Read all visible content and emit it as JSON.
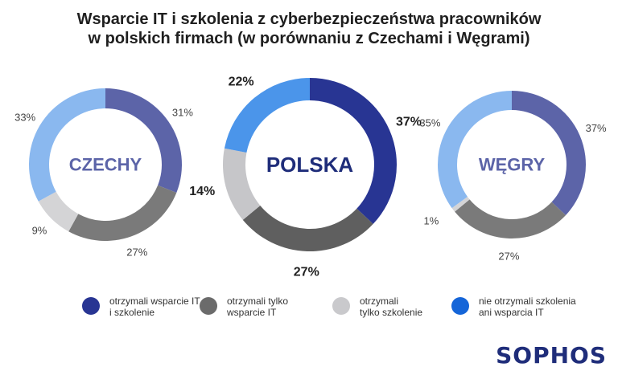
{
  "title_line1": "Wsparcie IT i szkolenia z cyberbezpieczeństwa pracowników",
  "title_line2": "w polskich firmach (w porównaniu z Czechami i Węgrami)",
  "brand": "SOPHOS",
  "legend": [
    {
      "label": "otrzymali wsparcie IT\ni szkolenie",
      "color": "#283593"
    },
    {
      "label": "otrzymali tylko\nwsparcie IT",
      "color": "#6b6b6b"
    },
    {
      "label": "otrzymali\ntylko szkolenie",
      "color": "#c9c9cc"
    },
    {
      "label": "nie otrzymali szkolenia\nani wsparcia IT",
      "color": "#1565d8"
    }
  ],
  "chart_data": [
    {
      "type": "donut",
      "center_label": "CZECHY",
      "categories": [
        "otrzymali wsparcie IT i szkolenie",
        "otrzymali tylko wsparcie IT",
        "otrzymali tylko szkolenie",
        "nie otrzymali szkolenia ani wsparcia IT"
      ],
      "values": [
        31,
        27,
        9,
        33
      ],
      "labels": [
        "31%",
        "27%",
        "9%",
        "33%"
      ],
      "colors": [
        "#5c64a8",
        "#7a7a7a",
        "#d4d4d6",
        "#8ab8ef"
      ],
      "label_color": "#444444",
      "center_color": "#5c64a8"
    },
    {
      "type": "donut",
      "center_label": "POLSKA",
      "categories": [
        "otrzymali wsparcie IT i szkolenie",
        "otrzymali tylko wsparcie IT",
        "otrzymali tylko szkolenie",
        "nie otrzymali szkolenia ani wsparcia IT"
      ],
      "values": [
        37,
        27,
        14,
        22
      ],
      "labels": [
        "37%",
        "27%",
        "14%",
        "22%"
      ],
      "colors": [
        "#283593",
        "#5f5f5f",
        "#c6c6c9",
        "#4b95ea"
      ],
      "label_color": "#222222",
      "center_color": "#1f2d7a"
    },
    {
      "type": "donut",
      "center_label": "WĘGRY",
      "categories": [
        "otrzymali wsparcie IT i szkolenie",
        "otrzymali tylko wsparcie IT",
        "otrzymali tylko szkolenie",
        "nie otrzymali szkolenia ani wsparcia IT"
      ],
      "values": [
        37,
        27,
        1,
        35
      ],
      "labels": [
        "37%",
        "27%",
        "1%",
        "35%"
      ],
      "colors": [
        "#5c64a8",
        "#7a7a7a",
        "#d4d4d6",
        "#8ab8ef"
      ],
      "label_color": "#444444",
      "center_color": "#5c64a8"
    }
  ]
}
